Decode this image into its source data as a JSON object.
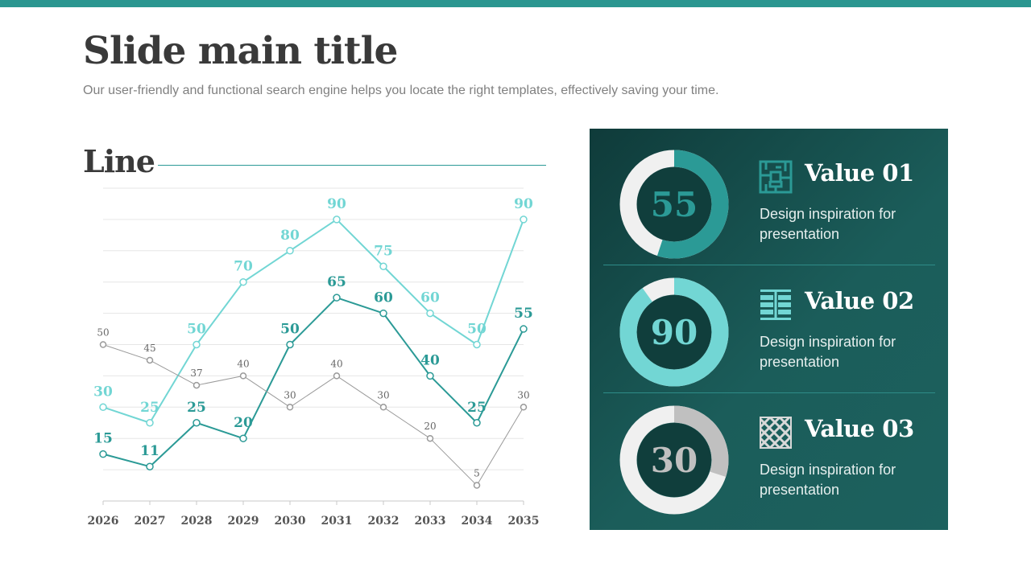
{
  "slide": {
    "title": "Slide main title",
    "subtitle": "Our user-friendly and functional search engine helps you locate the right templates, effectively saving your time.",
    "section_title": "Line",
    "colors": {
      "accent_top_bar": "#2b9690",
      "teal": "#2b9a96",
      "light_teal": "#72d6d4",
      "gray": "#9a9a9a",
      "panel": "#1b5d5a"
    }
  },
  "chart_data": {
    "type": "line",
    "categories": [
      "2026",
      "2027",
      "2028",
      "2029",
      "2030",
      "2031",
      "2032",
      "2033",
      "2034",
      "2035"
    ],
    "ylim": [
      0,
      100
    ],
    "grid": true,
    "series": [
      {
        "values": [
          30,
          25,
          50,
          70,
          80,
          90,
          75,
          60,
          50,
          90
        ],
        "color": "#72d6d4"
      },
      {
        "values": [
          15,
          11,
          25,
          20,
          50,
          65,
          60,
          40,
          25,
          55
        ],
        "color": "#2b9a96"
      },
      {
        "values": [
          50,
          45,
          37,
          40,
          30,
          40,
          30,
          20,
          5,
          30
        ],
        "color": "#9a9a9a"
      }
    ]
  },
  "kpis": [
    {
      "value": "55",
      "percent": 55,
      "title": "Value 01",
      "description": "Design inspiration for presentation",
      "icon": "maze-pattern-icon",
      "accent": "#2b9a96"
    },
    {
      "value": "90",
      "percent": 90,
      "title": "Value 02",
      "description": "Design inspiration for presentation",
      "icon": "grid-bars-pattern-icon",
      "accent": "#72d6d4"
    },
    {
      "value": "30",
      "percent": 30,
      "title": "Value 03",
      "description": "Design inspiration for presentation",
      "icon": "diagonal-weave-pattern-icon",
      "accent": "#c0c0c0"
    }
  ]
}
